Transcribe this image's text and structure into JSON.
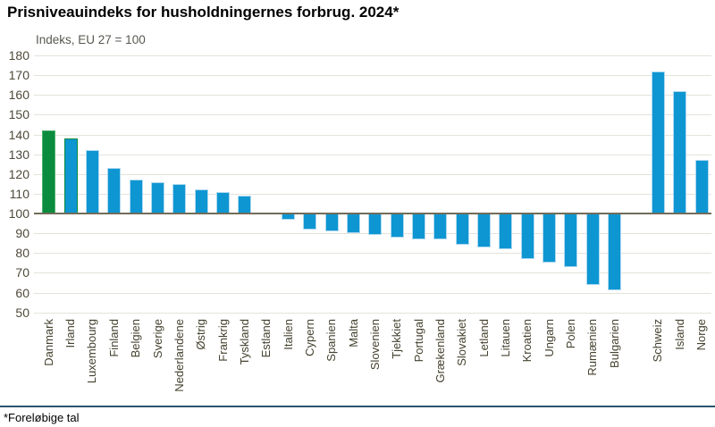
{
  "header": {
    "title": "Prisniveauindeks for husholdningernes forbrug. 2024*",
    "subtitle": "Indeks, EU 27 = 100"
  },
  "footer": {
    "note": "*Foreløbige tal"
  },
  "chart_data": {
    "type": "bar",
    "title": "Prisniveauindeks for husholdningernes forbrug. 2024*",
    "subtitle": "Indeks, EU 27 = 100",
    "footnote": "*Foreløbige tal",
    "baseline": 100,
    "ylim": [
      50,
      180
    ],
    "yticks": [
      180,
      170,
      160,
      150,
      140,
      130,
      120,
      110,
      100,
      90,
      80,
      70,
      60,
      50
    ],
    "grid": "horizontal",
    "legend": "none",
    "categories": [
      "Danmark",
      "Irland",
      "Luxembourg",
      "Finland",
      "Belgien",
      "Sverige",
      "Nederlandene",
      "Østrig",
      "Frankrig",
      "Tyskland",
      "Estland",
      "Italien",
      "Cypern",
      "Spanien",
      "Malta",
      "Slovenien",
      "Tjekkiet",
      "Portugal",
      "Grækenland",
      "Slovakiet",
      "Letland",
      "Litauen",
      "Kroatien",
      "Ungarn",
      "Polen",
      "Rumænien",
      "Bulgarien",
      "Schweiz",
      "Island",
      "Norge"
    ],
    "values": [
      142,
      138,
      132,
      123,
      117,
      116,
      115,
      112,
      111,
      109,
      100,
      97,
      92,
      91,
      90,
      89,
      88,
      87,
      87,
      84,
      83,
      82,
      77,
      75,
      73,
      64,
      61,
      172,
      162,
      127
    ],
    "gap_before": "Schweiz",
    "highlight_category": "Danmark",
    "colors": {
      "highlight_bar": "#0a8b3d",
      "default_bar": "#0e96d2",
      "bar_border": "#aed9f0",
      "irland_bar_border": "#0a8b3d",
      "gridline": "#e3e3db",
      "baseline": "#716c59",
      "axis_text": "#4e4a3b",
      "footer_rule": "#29566b"
    }
  }
}
